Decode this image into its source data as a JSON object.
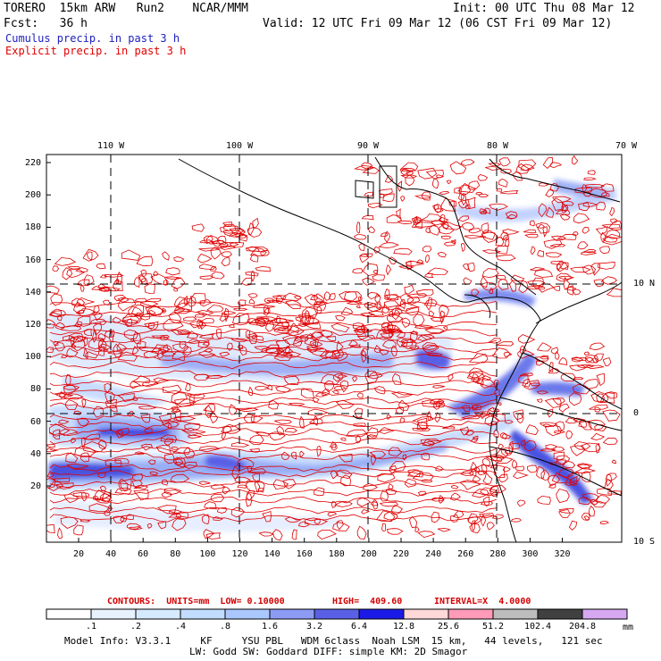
{
  "header": {
    "line1_left": "TORERO  15km ARW   Run2    NCAR/MMM",
    "line1_right": "Init: 00 UTC Thu 08 Mar 12",
    "line2_left": "Fcst:   36 h",
    "line2_right": "Valid: 12 UTC Fri 09 Mar 12 (06 CST Fri 09 Mar 12)"
  },
  "legend": {
    "cumulus": "Cumulus precip. in past 3 h",
    "cumulus_color": "#2020c0",
    "explicit": "Explicit precip. in past 3 h",
    "explicit_color": "#e00000"
  },
  "map": {
    "lon_labels": [
      "110 W",
      "100 W",
      "90 W",
      "80 W",
      "70 W"
    ],
    "lat_labels": [
      "10 N",
      "0",
      "10 S"
    ],
    "y_ticks": [
      "220",
      "200",
      "180",
      "160",
      "140",
      "120",
      "100",
      "80",
      "60",
      "40",
      "20"
    ],
    "x_ticks": [
      "20",
      "40",
      "60",
      "80",
      "100",
      "120",
      "140",
      "160",
      "180",
      "200",
      "220",
      "240",
      "260",
      "280",
      "300",
      "320"
    ],
    "grid": true
  },
  "contours_line": {
    "units_label": "CONTOURS:  UNITS=mm  LOW= 0.10000",
    "high_label": "HIGH=  409.60",
    "interval_label": "INTERVAL=X  4.0000"
  },
  "colorbar": {
    "labels": [
      ".1",
      ".2",
      ".4",
      ".8",
      "1.6",
      "3.2",
      "6.4",
      "12.8",
      "25.6",
      "51.2",
      "102.4",
      "204.8"
    ],
    "unit": "mm",
    "colors": [
      "#ffffff",
      "#e8f2ff",
      "#d6eaff",
      "#c2dcff",
      "#aac8ff",
      "#8c9cf4",
      "#5a60e6",
      "#1a1ae6",
      "#ffd8d8",
      "#ff9ab8",
      "#bdbdbd",
      "#404040",
      "#d7a8f2"
    ]
  },
  "model_info": {
    "line1": "Model Info: V3.3.1     KF     YSU PBL   WDM 6class  Noah LSM  15 km,   44 levels,   121 sec",
    "line2": "LW: Godd SW: Goddard DIFF: simple KM: 2D Smagor"
  }
}
